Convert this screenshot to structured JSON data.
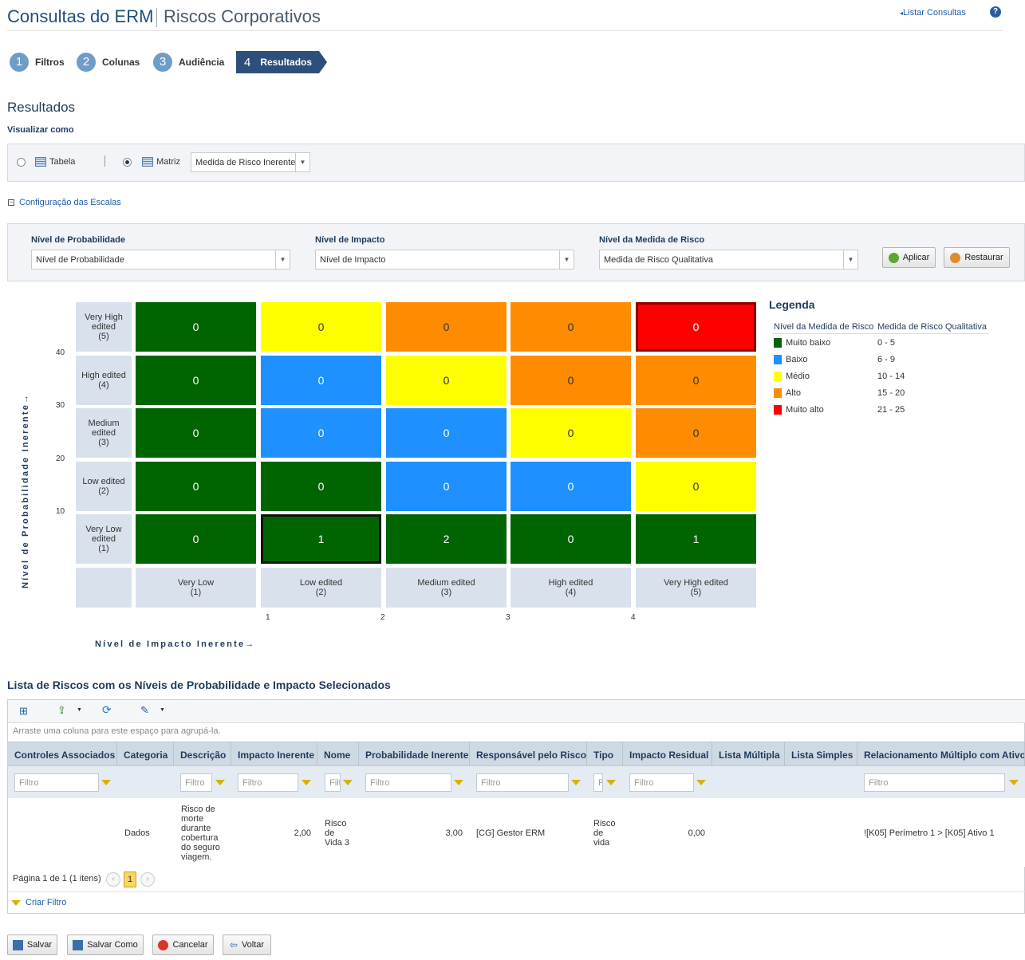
{
  "header": {
    "title": "Consultas do ERM",
    "subtitle": "Riscos Corporativos",
    "list_link": "Listar Consultas",
    "help_icon": "?"
  },
  "steps": [
    {
      "num": "1",
      "label": "Filtros"
    },
    {
      "num": "2",
      "label": "Colunas"
    },
    {
      "num": "3",
      "label": "Audiência"
    },
    {
      "num": "4",
      "label": "Resultados"
    }
  ],
  "results": {
    "heading": "Resultados",
    "view_as": "Visualizar como",
    "table_option": "Tabela",
    "matrix_option": "Matriz",
    "selected_view": "matrix",
    "matrix_measure": "Medida de Risco Inerente",
    "scale_config_link": "Configuração das Escalas"
  },
  "scale": {
    "prob_label": "Nível de Probabilidade",
    "prob_value": "Nível de Probabilidade",
    "impact_label": "Nível de Impacto",
    "impact_value": "Nível de Impacto",
    "measure_label": "Nível da Medida de Risco",
    "measure_value": "Medida de Risco Qualitativa",
    "apply_button": "Aplicar",
    "restore_button": "Restaurar"
  },
  "matrix": {
    "row_headers": [
      {
        "name": "Very High edited",
        "level": "(5)"
      },
      {
        "name": "High edited",
        "level": "(4)"
      },
      {
        "name": "Medium edited",
        "level": "(3)"
      },
      {
        "name": "Low edited",
        "level": "(2)"
      },
      {
        "name": "Very Low edited",
        "level": "(1)"
      }
    ],
    "col_headers": [
      {
        "name": "Very Low",
        "level": "(1)"
      },
      {
        "name": "Low edited",
        "level": "(2)"
      },
      {
        "name": "Medium edited",
        "level": "(3)"
      },
      {
        "name": "High edited",
        "level": "(4)"
      },
      {
        "name": "Very High edited",
        "level": "(5)"
      }
    ],
    "cells": [
      [
        {
          "v": "0",
          "c": "dg"
        },
        {
          "v": "0",
          "c": "y"
        },
        {
          "v": "0",
          "c": "o"
        },
        {
          "v": "0",
          "c": "o"
        },
        {
          "v": "0",
          "c": "r",
          "sel": true
        }
      ],
      [
        {
          "v": "0",
          "c": "dg"
        },
        {
          "v": "0",
          "c": "b"
        },
        {
          "v": "0",
          "c": "y"
        },
        {
          "v": "0",
          "c": "o"
        },
        {
          "v": "0",
          "c": "o"
        }
      ],
      [
        {
          "v": "0",
          "c": "dg"
        },
        {
          "v": "0",
          "c": "b"
        },
        {
          "v": "0",
          "c": "b"
        },
        {
          "v": "0",
          "c": "y"
        },
        {
          "v": "0",
          "c": "o"
        }
      ],
      [
        {
          "v": "0",
          "c": "dg"
        },
        {
          "v": "0",
          "c": "dg"
        },
        {
          "v": "0",
          "c": "b"
        },
        {
          "v": "0",
          "c": "b"
        },
        {
          "v": "0",
          "c": "y"
        }
      ],
      [
        {
          "v": "0",
          "c": "dg"
        },
        {
          "v": "1",
          "c": "dg",
          "sel": true
        },
        {
          "v": "2",
          "c": "dg"
        },
        {
          "v": "0",
          "c": "dg"
        },
        {
          "v": "1",
          "c": "dg"
        }
      ]
    ],
    "y_ticks": [
      "40",
      "30",
      "20",
      "10"
    ],
    "x_ticks": [
      "1",
      "2",
      "3",
      "4"
    ],
    "y_axis_label": "Nível de Probabilidade Inerente→",
    "x_axis_label": "Nível de Impacto Inerente→",
    "colors": {
      "dg": "#006400",
      "b": "#1e90ff",
      "y": "#ffff00",
      "o": "#ff8c00",
      "r": "#ff0000"
    }
  },
  "legend": {
    "title": "Legenda",
    "col1": "Nível da Medida de Risco",
    "col2": "Medida de Risco Qualitativa",
    "items": [
      {
        "label": "Muito baixo",
        "range": "0 - 5",
        "color": "#006400"
      },
      {
        "label": "Baixo",
        "range": "6 - 9",
        "color": "#1e90ff"
      },
      {
        "label": "Médio",
        "range": "10 - 14",
        "color": "#ffff00"
      },
      {
        "label": "Alto",
        "range": "15 - 20",
        "color": "#ff8c00"
      },
      {
        "label": "Muito alto",
        "range": "21 - 25",
        "color": "#ff0000"
      }
    ]
  },
  "risk_list": {
    "title": "Lista de Riscos com os Níveis de Probabilidade e Impacto Selecionados",
    "group_hint": "Arraste uma coluna para este espaço para agrupá-la.",
    "filter_placeholder": "Filtro",
    "filter_short": "Filt",
    "filter_tiny": "F",
    "columns": [
      "Controles Associados",
      "Categoria",
      "Descrição",
      "Impacto Inerente",
      "Nome",
      "Probabilidade Inerente",
      "Responsável pelo Risco",
      "Tipo",
      "Impacto Residual",
      "Lista Múltipla",
      "Lista Simples",
      "Relacionamento Múltiplo com Ativo"
    ],
    "row": {
      "controles": "",
      "categoria": "Dados",
      "descricao": "Risco de morte durante cobertura do seguro viagem.",
      "impacto_inerente": "2,00",
      "nome": "Risco de Vida 3",
      "probabilidade": "3,00",
      "responsavel": "[CG] Gestor ERM",
      "tipo": "Risco de vida",
      "impacto_residual": "0,00",
      "lista_multipla": "",
      "lista_simples": "",
      "relacionamento": "![K05] Perímetro 1 > [K05] Ativo 1"
    },
    "pager_text": "Página 1 de 1 (1 itens)",
    "current_page": "1",
    "create_filter": "Criar Filtro"
  },
  "footer_buttons": {
    "save": "Salvar",
    "save_as": "Salvar Como",
    "cancel": "Cancelar",
    "back": "Voltar"
  }
}
